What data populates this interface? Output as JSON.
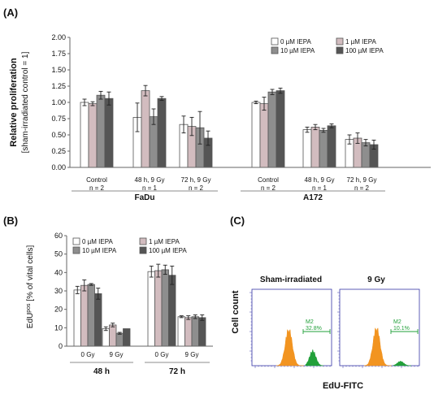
{
  "panels": {
    "A": "(A)",
    "B": "(B)",
    "C": "(C)"
  },
  "colors": {
    "c0": "#ffffff",
    "c1": "#d2bcbf",
    "c2": "#8e8e8e",
    "c3": "#555555",
    "cytometry_orange": "#f29420",
    "cytometry_green": "#22a03a",
    "cytometry_axis": "#3434a6"
  },
  "chart_data": [
    {
      "type": "bar",
      "panel": "(A)",
      "ylabel": "Relative proliferation",
      "ylabel2": "[sham-irradiated control = 1]",
      "ylim": [
        0,
        2.0
      ],
      "yticks": [
        "0.00",
        "0.25",
        "0.50",
        "0.75",
        "1.00",
        "1.25",
        "1.50",
        "1.75",
        "2.00"
      ],
      "grid": false,
      "legend_position": "top-right",
      "legend": [
        "0 µM IEPA",
        "1 µM IEPA",
        "10 µM IEPA",
        "100 µM IEPA"
      ],
      "groups": [
        {
          "name": "FaDu",
          "categories": [
            {
              "label": "Control",
              "n": "n = 2",
              "values": [
                1.0,
                0.98,
                1.11,
                1.06
              ],
              "errors": [
                0.05,
                0.03,
                0.06,
                0.1
              ]
            },
            {
              "label": "48 h, 9 Gy",
              "n": "n = 1",
              "values": [
                0.77,
                1.18,
                0.78,
                1.06
              ],
              "errors": [
                0.22,
                0.08,
                0.12,
                0.03
              ]
            },
            {
              "label": "72 h, 9 Gy",
              "n": "n = 2",
              "values": [
                0.66,
                0.63,
                0.61,
                0.45
              ],
              "errors": [
                0.13,
                0.14,
                0.25,
                0.11
              ]
            }
          ]
        },
        {
          "name": "A172",
          "categories": [
            {
              "label": "Control",
              "n": "n = 2",
              "values": [
                1.0,
                0.98,
                1.16,
                1.18
              ],
              "errors": [
                0.02,
                0.1,
                0.04,
                0.04
              ]
            },
            {
              "label": "48 h, 9 Gy",
              "n": "n = 1",
              "values": [
                0.58,
                0.62,
                0.57,
                0.64
              ],
              "errors": [
                0.04,
                0.04,
                0.03,
                0.03
              ]
            },
            {
              "label": "72 h, 9 Gy",
              "n": "n = 2",
              "values": [
                0.43,
                0.45,
                0.38,
                0.35
              ],
              "errors": [
                0.07,
                0.08,
                0.05,
                0.07
              ]
            }
          ]
        }
      ]
    },
    {
      "type": "bar",
      "panel": "(B)",
      "ylabel_main": "EdU",
      "ylabel_sup": "pos",
      "ylabel_rest": " [% of vital cells]",
      "ylim": [
        0,
        60
      ],
      "yticks": [
        "0",
        "10",
        "20",
        "30",
        "40",
        "50",
        "60"
      ],
      "grid": false,
      "legend_position": "top-left",
      "legend": [
        "0 µM IEPA",
        "1 µM IEPA",
        "10 µM IEPA",
        "100 µM IEPA"
      ],
      "groups": [
        {
          "name": "48 h",
          "categories": [
            {
              "label": "0 Gy",
              "values": [
                30.5,
                33.0,
                33.5,
                28.5
              ],
              "errors": [
                2.0,
                3.0,
                0.5,
                3.0
              ]
            },
            {
              "label": "9 Gy",
              "values": [
                9.5,
                11.5,
                7.0,
                9.5
              ],
              "errors": [
                1.0,
                1.0,
                0.5,
                0.0
              ]
            }
          ]
        },
        {
          "name": "72 h",
          "categories": [
            {
              "label": "0 Gy",
              "values": [
                40.5,
                41.0,
                41.5,
                38.5
              ],
              "errors": [
                3.0,
                3.5,
                2.5,
                5.0
              ]
            },
            {
              "label": "9 Gy",
              "values": [
                16.0,
                15.5,
                16.0,
                15.5
              ],
              "errors": [
                0.5,
                1.0,
                1.0,
                1.5
              ]
            }
          ]
        }
      ]
    }
  ],
  "cytometry": {
    "ylabel": "Cell count",
    "xlabel": "EdU-FITC",
    "plots": [
      {
        "title": "Sham-irradiated",
        "gate": "M2",
        "percent": "32.8%"
      },
      {
        "title": "9 Gy",
        "gate": "M2",
        "percent": "10.1%"
      }
    ]
  }
}
